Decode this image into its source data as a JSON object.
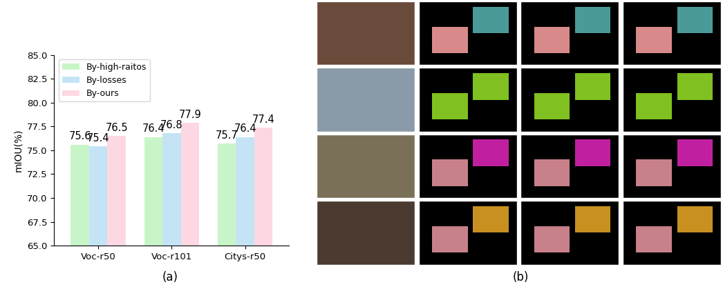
{
  "chart_data": {
    "type": "bar",
    "caption": "(a)",
    "y_label": "mIOU(%)",
    "categories": [
      "Voc-r50",
      "Voc-r101",
      "Citys-r50"
    ],
    "series": [
      {
        "name": "By-high-raitos",
        "color": "#c8f5c8",
        "values": [
          75.6,
          76.4,
          75.7
        ]
      },
      {
        "name": "By-losses",
        "color": "#c4e4f5",
        "values": [
          75.4,
          76.8,
          76.4
        ]
      },
      {
        "name": "By-ours",
        "color": "#fdd8e2",
        "values": [
          76.5,
          77.9,
          77.4
        ]
      }
    ],
    "ylim": [
      65,
      85
    ],
    "yticks": [
      {
        "value": 65,
        "label": "65.0"
      },
      {
        "value": 67.5,
        "label": "67.5"
      },
      {
        "value": 70,
        "label": "70.0"
      },
      {
        "value": 72.5,
        "label": "72.5"
      },
      {
        "value": 75,
        "label": "75.0"
      },
      {
        "value": 77.5,
        "label": "77.5"
      },
      {
        "value": 80,
        "label": "80.0"
      },
      {
        "value": 82.5,
        "label": "82.5"
      },
      {
        "value": 85,
        "label": "85.0"
      }
    ],
    "legend": "upper left",
    "data_labels": true,
    "grid": false
  },
  "image_grid": {
    "caption": "(b)"
  }
}
